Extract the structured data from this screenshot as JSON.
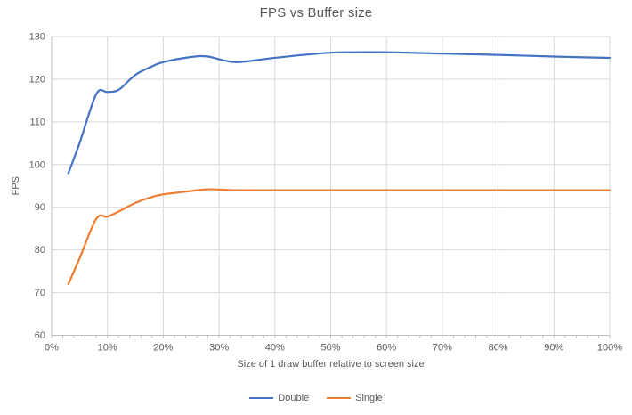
{
  "chart": {
    "title": "FPS vs Buffer size",
    "xlabel": "Size of 1 draw buffer relative to screen size",
    "ylabel": "FPS"
  },
  "legend": {
    "items": [
      {
        "label": "Double",
        "color": "#4472C4"
      },
      {
        "label": "Single",
        "color": "#ED7D31"
      }
    ]
  },
  "chart_data": {
    "type": "line",
    "title": "FPS vs Buffer size",
    "xlabel": "Size of 1 draw buffer relative to screen size",
    "ylabel": "FPS",
    "x": [
      3,
      5,
      8,
      10,
      12,
      15,
      18,
      20,
      25,
      28,
      33,
      40,
      50,
      60,
      70,
      80,
      90,
      100
    ],
    "x_unit": "%",
    "series": [
      {
        "name": "Double",
        "color": "#4472C4",
        "values": [
          98,
          105,
          116.5,
          117,
          117.5,
          121,
          123,
          124,
          125.2,
          125.3,
          124,
          125,
          126.2,
          126.3,
          126,
          125.7,
          125.3,
          125
        ]
      },
      {
        "name": "Single",
        "color": "#ED7D31",
        "values": [
          72,
          78,
          87.3,
          87.8,
          89,
          91,
          92.4,
          93,
          93.8,
          94.2,
          94,
          94,
          94,
          94,
          94,
          94,
          94,
          94
        ]
      }
    ],
    "xlim": [
      0,
      100
    ],
    "ylim": [
      60,
      130
    ],
    "x_tick_labels": [
      "0%",
      "10%",
      "20%",
      "30%",
      "40%",
      "50%",
      "60%",
      "70%",
      "80%",
      "90%",
      "100%"
    ],
    "x_tick_values": [
      0,
      10,
      20,
      30,
      40,
      50,
      60,
      70,
      80,
      90,
      100
    ],
    "x_minor_tick_step": 2,
    "y_tick_values": [
      60,
      70,
      80,
      90,
      100,
      110,
      120,
      130
    ],
    "grid": true,
    "smooth_lines": true,
    "legend_position": "bottom-center",
    "colors": {
      "gridline": "#D9D9D9",
      "axis_line": "#BFBFBF",
      "tick_text": "#595959",
      "title_text": "#595959",
      "background": "#FFFFFF"
    }
  }
}
